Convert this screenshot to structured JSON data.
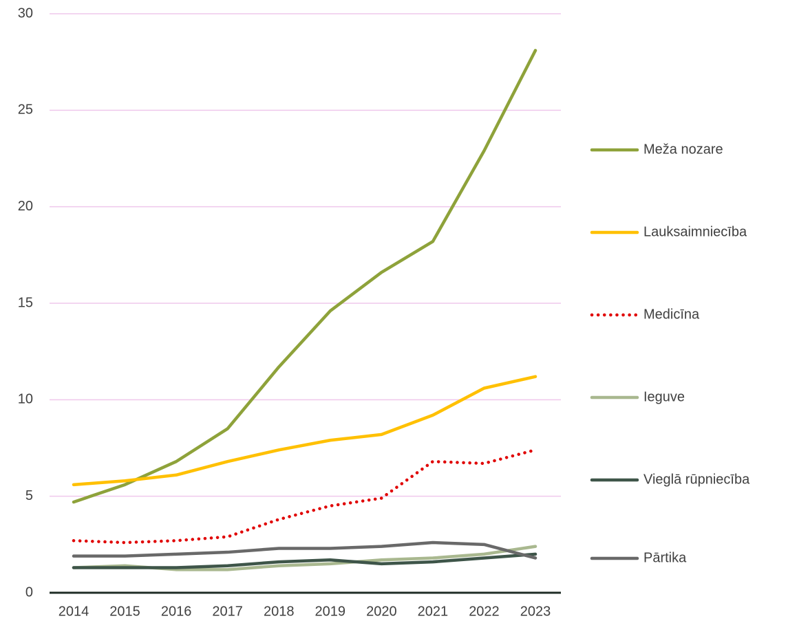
{
  "chart_data": {
    "type": "line",
    "categories": [
      "2014",
      "2015",
      "2016",
      "2017",
      "2018",
      "2019",
      "2020",
      "2021",
      "2022",
      "2023"
    ],
    "series": [
      {
        "name": "Meža nozare",
        "color": "#8ea23a",
        "values": [
          4.7,
          5.6,
          6.8,
          8.5,
          11.7,
          14.6,
          16.6,
          18.2,
          22.9,
          28.1
        ]
      },
      {
        "name": "Lauksaimniecība",
        "color": "#ffc000",
        "values": [
          5.6,
          5.8,
          6.1,
          6.8,
          7.4,
          7.9,
          8.2,
          9.2,
          10.6,
          11.2
        ]
      },
      {
        "name": "Medicīna",
        "color": "#e00000",
        "line_style": "dotted",
        "values": [
          2.7,
          2.6,
          2.7,
          2.9,
          3.8,
          4.5,
          4.9,
          6.8,
          6.7,
          7.4
        ]
      },
      {
        "name": "Ieguve",
        "color": "#a9b88f",
        "values": [
          1.3,
          1.4,
          1.2,
          1.2,
          1.4,
          1.5,
          1.7,
          1.8,
          2.0,
          2.4
        ]
      },
      {
        "name": "Vieglā rūpniecība",
        "color": "#3e5549",
        "values": [
          1.3,
          1.3,
          1.3,
          1.4,
          1.6,
          1.7,
          1.5,
          1.6,
          1.8,
          2.0
        ]
      },
      {
        "name": "Pārtika",
        "color": "#696969",
        "values": [
          1.9,
          1.9,
          2.0,
          2.1,
          2.3,
          2.3,
          2.4,
          2.6,
          2.5,
          1.8
        ]
      }
    ],
    "ylim": [
      0,
      30
    ],
    "yticks": [
      0,
      5,
      10,
      15,
      20,
      25,
      30
    ],
    "grid": true,
    "legend": "right"
  }
}
